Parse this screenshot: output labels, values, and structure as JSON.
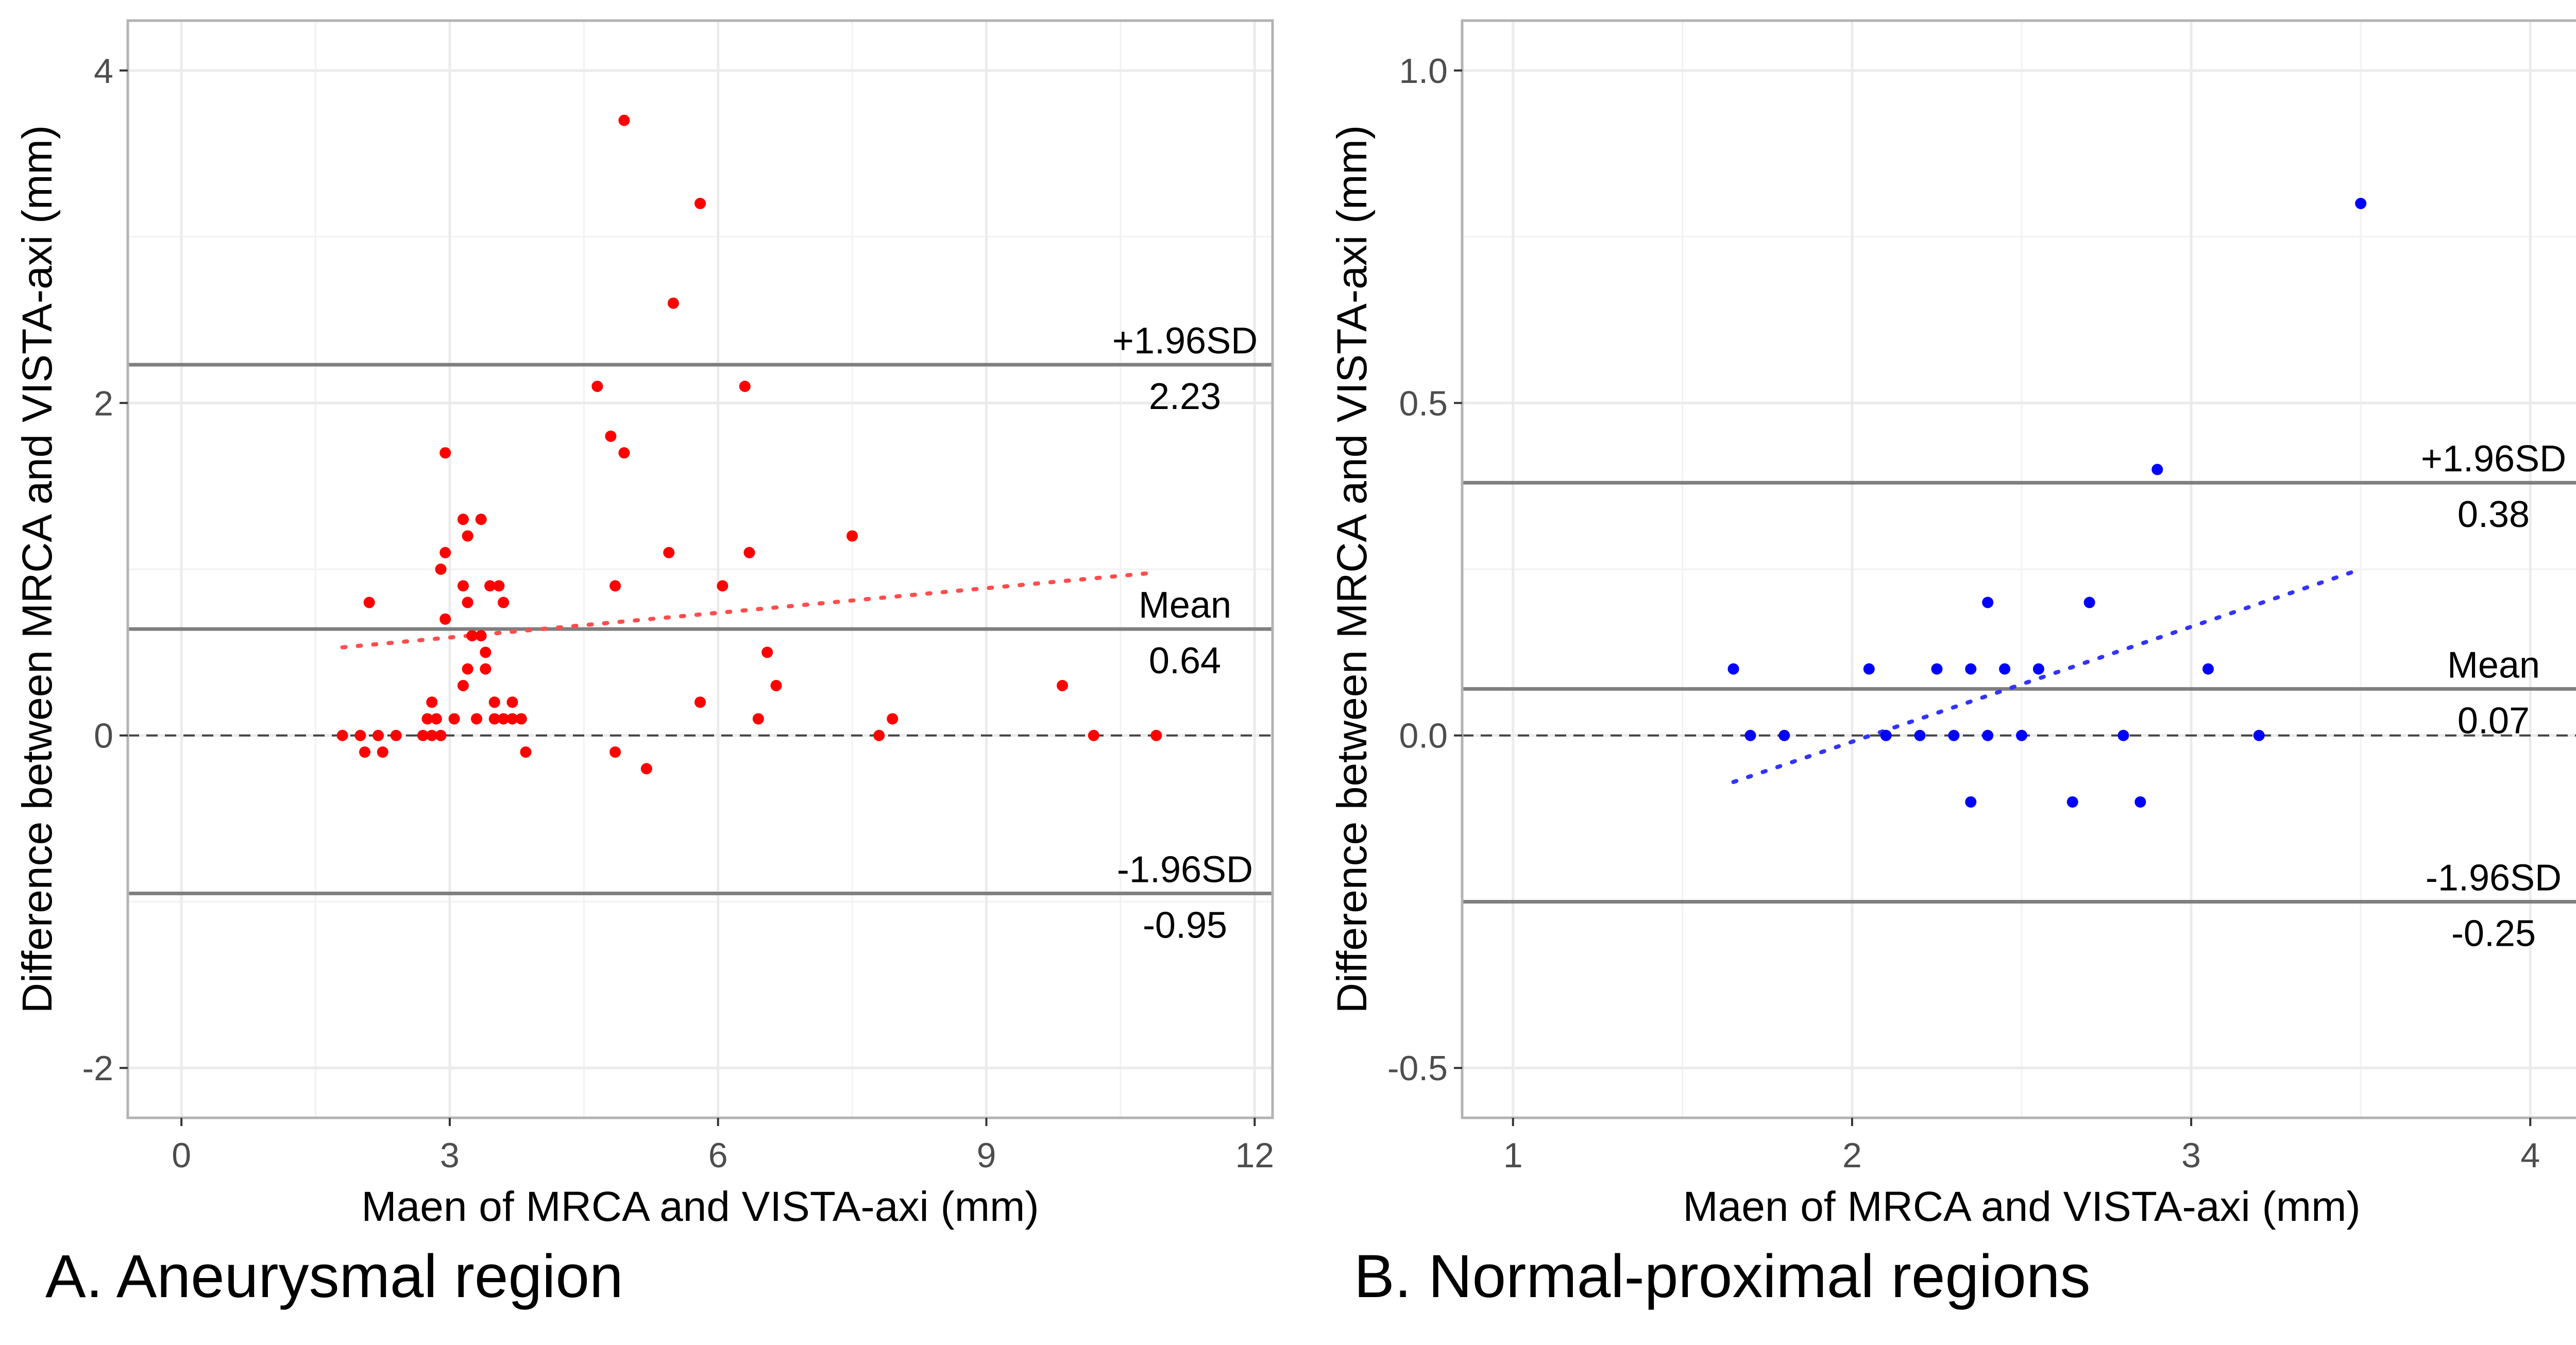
{
  "chart_data": [
    {
      "type": "scatter",
      "panel": "A",
      "caption": "A. Aneurysmal region",
      "xlabel": "Maen of MRCA and VISTA-axi (mm)",
      "ylabel": "Difference between MRCA and VISTA-axi (mm)",
      "xlim": [
        -0.6,
        12.2
      ],
      "ylim": [
        -2.3,
        4.3
      ],
      "xticks": [
        0,
        3,
        6,
        9,
        12
      ],
      "xtick_labels": [
        "0",
        "3",
        "6",
        "9",
        "12"
      ],
      "yticks": [
        -2,
        0,
        2,
        4
      ],
      "ytick_labels": [
        "-2",
        "0",
        "2",
        "4"
      ],
      "minor_xgrid": [
        1.5,
        4.5,
        7.5,
        10.5
      ],
      "minor_ygrid": [
        -1,
        1,
        3
      ],
      "grid": true,
      "point_color": "#ff0000",
      "reference_lines": [
        {
          "name": "upper-loa",
          "value": 2.23,
          "label_top": "+1.96SD",
          "label_bottom": "2.23",
          "style": "solid"
        },
        {
          "name": "mean",
          "value": 0.64,
          "label_top": "Mean",
          "label_bottom": "0.64",
          "style": "solid"
        },
        {
          "name": "lower-loa",
          "value": -0.95,
          "label_top": "-1.96SD",
          "label_bottom": "-0.95",
          "style": "solid"
        },
        {
          "name": "zero",
          "value": 0,
          "style": "dashed"
        }
      ],
      "trend_line": {
        "x": [
          1.8,
          10.9
        ],
        "y": [
          0.53,
          0.98
        ],
        "style": "dotted",
        "color": "#ff4d4d"
      },
      "points": [
        [
          4.95,
          3.7
        ],
        [
          5.8,
          3.2
        ],
        [
          5.5,
          2.6
        ],
        [
          4.65,
          2.1
        ],
        [
          6.3,
          2.1
        ],
        [
          4.8,
          1.8
        ],
        [
          4.95,
          1.7
        ],
        [
          2.95,
          1.7
        ],
        [
          3.15,
          1.3
        ],
        [
          3.35,
          1.3
        ],
        [
          3.2,
          1.2
        ],
        [
          7.5,
          1.2
        ],
        [
          2.95,
          1.1
        ],
        [
          5.45,
          1.1
        ],
        [
          6.35,
          1.1
        ],
        [
          2.9,
          1.0
        ],
        [
          3.15,
          0.9
        ],
        [
          3.45,
          0.9
        ],
        [
          3.55,
          0.9
        ],
        [
          4.85,
          0.9
        ],
        [
          6.05,
          0.9
        ],
        [
          2.1,
          0.8
        ],
        [
          3.2,
          0.8
        ],
        [
          3.6,
          0.8
        ],
        [
          2.95,
          0.7
        ],
        [
          3.25,
          0.6
        ],
        [
          3.35,
          0.6
        ],
        [
          3.4,
          0.5
        ],
        [
          6.55,
          0.5
        ],
        [
          3.2,
          0.4
        ],
        [
          3.4,
          0.4
        ],
        [
          3.15,
          0.3
        ],
        [
          6.65,
          0.3
        ],
        [
          9.85,
          0.3
        ],
        [
          2.8,
          0.2
        ],
        [
          3.5,
          0.2
        ],
        [
          3.7,
          0.2
        ],
        [
          5.8,
          0.2
        ],
        [
          2.75,
          0.1
        ],
        [
          2.85,
          0.1
        ],
        [
          3.05,
          0.1
        ],
        [
          3.3,
          0.1
        ],
        [
          3.5,
          0.1
        ],
        [
          3.6,
          0.1
        ],
        [
          3.7,
          0.1
        ],
        [
          3.8,
          0.1
        ],
        [
          6.45,
          0.1
        ],
        [
          7.95,
          0.1
        ],
        [
          1.8,
          0.0
        ],
        [
          2.0,
          0.0
        ],
        [
          2.2,
          0.0
        ],
        [
          2.4,
          0.0
        ],
        [
          2.7,
          0.0
        ],
        [
          2.8,
          0.0
        ],
        [
          2.9,
          0.0
        ],
        [
          7.8,
          0.0
        ],
        [
          10.2,
          0.0
        ],
        [
          10.9,
          0.0
        ],
        [
          2.05,
          -0.1
        ],
        [
          2.25,
          -0.1
        ],
        [
          3.85,
          -0.1
        ],
        [
          4.85,
          -0.1
        ],
        [
          5.2,
          -0.2
        ]
      ]
    },
    {
      "type": "scatter",
      "panel": "B",
      "caption": "B. Normal-proximal regions",
      "xlabel": "Maen of MRCA and VISTA-axi (mm)",
      "ylabel": "Difference between MRCA and VISTA-axi (mm)",
      "xlim": [
        0.85,
        4.15
      ],
      "ylim": [
        -0.575,
        1.075
      ],
      "xticks": [
        1,
        2,
        3,
        4
      ],
      "xtick_labels": [
        "1",
        "2",
        "3",
        "4"
      ],
      "yticks": [
        -0.5,
        0.0,
        0.5,
        1.0
      ],
      "ytick_labels": [
        "-0.5",
        "0.0",
        "0.5",
        "1.0"
      ],
      "minor_xgrid": [
        1.5,
        2.5,
        3.5
      ],
      "minor_ygrid": [
        -0.25,
        0.25,
        0.75
      ],
      "grid": true,
      "point_color": "#0000ff",
      "reference_lines": [
        {
          "name": "upper-loa",
          "value": 0.38,
          "label_top": "+1.96SD",
          "label_bottom": "0.38",
          "style": "solid"
        },
        {
          "name": "mean",
          "value": 0.07,
          "label_top": "Mean",
          "label_bottom": "0.07",
          "style": "solid"
        },
        {
          "name": "lower-loa",
          "value": -0.25,
          "label_top": "-1.96SD",
          "label_bottom": "-0.25",
          "style": "solid"
        },
        {
          "name": "zero",
          "value": 0,
          "style": "dashed"
        }
      ],
      "trend_line": {
        "x": [
          1.65,
          3.5
        ],
        "y": [
          -0.07,
          0.25
        ],
        "style": "dotted",
        "color": "#3333ff"
      },
      "points": [
        [
          3.5,
          0.8
        ],
        [
          2.9,
          0.4
        ],
        [
          2.4,
          0.2
        ],
        [
          2.7,
          0.2
        ],
        [
          1.65,
          0.1
        ],
        [
          2.05,
          0.1
        ],
        [
          2.25,
          0.1
        ],
        [
          2.35,
          0.1
        ],
        [
          2.45,
          0.1
        ],
        [
          2.55,
          0.1
        ],
        [
          3.05,
          0.1
        ],
        [
          1.7,
          0.0
        ],
        [
          1.8,
          0.0
        ],
        [
          2.1,
          0.0
        ],
        [
          2.2,
          0.0
        ],
        [
          2.3,
          0.0
        ],
        [
          2.4,
          0.0
        ],
        [
          2.5,
          0.0
        ],
        [
          2.8,
          0.0
        ],
        [
          3.2,
          0.0
        ],
        [
          2.35,
          -0.1
        ],
        [
          2.65,
          -0.1
        ],
        [
          2.85,
          -0.1
        ]
      ]
    }
  ]
}
